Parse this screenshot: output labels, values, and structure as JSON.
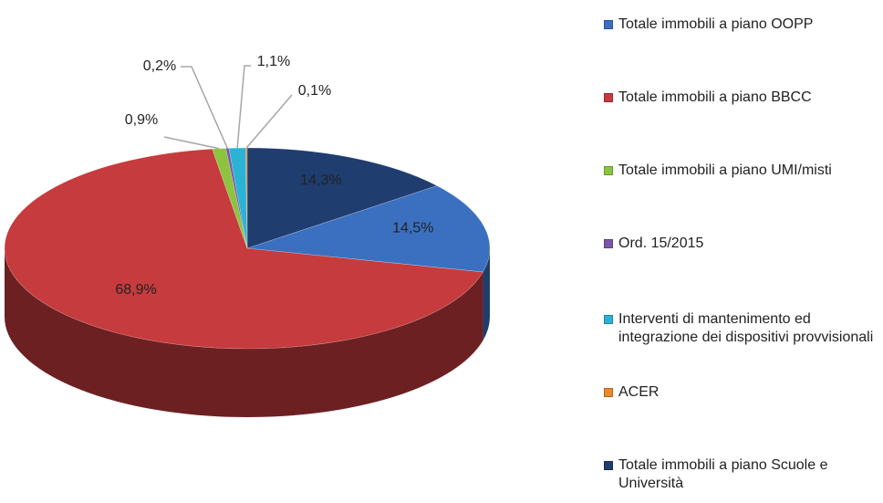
{
  "chart_data": {
    "type": "pie3d",
    "series": [
      {
        "name": "Totale immobili a piano OOPP",
        "color": "#3b70c0",
        "values": [
          14.5
        ],
        "value_labels": [
          "14,5%"
        ]
      },
      {
        "name": "Totale immobili a piano BBCC",
        "color": "#c63b3d",
        "values": [
          68.9
        ],
        "value_labels": [
          "68,9%"
        ]
      },
      {
        "name": "Totale immobili a piano UMI/misti",
        "color": "#8cc43f",
        "values": [
          0.9
        ],
        "value_labels": [
          "0,9%"
        ]
      },
      {
        "name": "Ord. 15/2015",
        "color": "#7d55a8",
        "values": [
          0.2
        ],
        "value_labels": [
          "0,2%"
        ]
      },
      {
        "name": "Interventi di mantenimento ed integrazione dei dispositivi provvisionali",
        "color": "#2bb3d6",
        "values": [
          1.1
        ],
        "value_labels": [
          "1,1%"
        ]
      },
      {
        "name": "ACER",
        "color": "#e88a2b",
        "values": [
          0.1
        ],
        "value_labels": [
          "0,1%"
        ]
      },
      {
        "name": "Totale immobili a piano Scuole e Università",
        "color": "#1f3d6e",
        "values": [
          14.3
        ],
        "value_labels": [
          "14,3%"
        ]
      }
    ],
    "legend": "right"
  }
}
